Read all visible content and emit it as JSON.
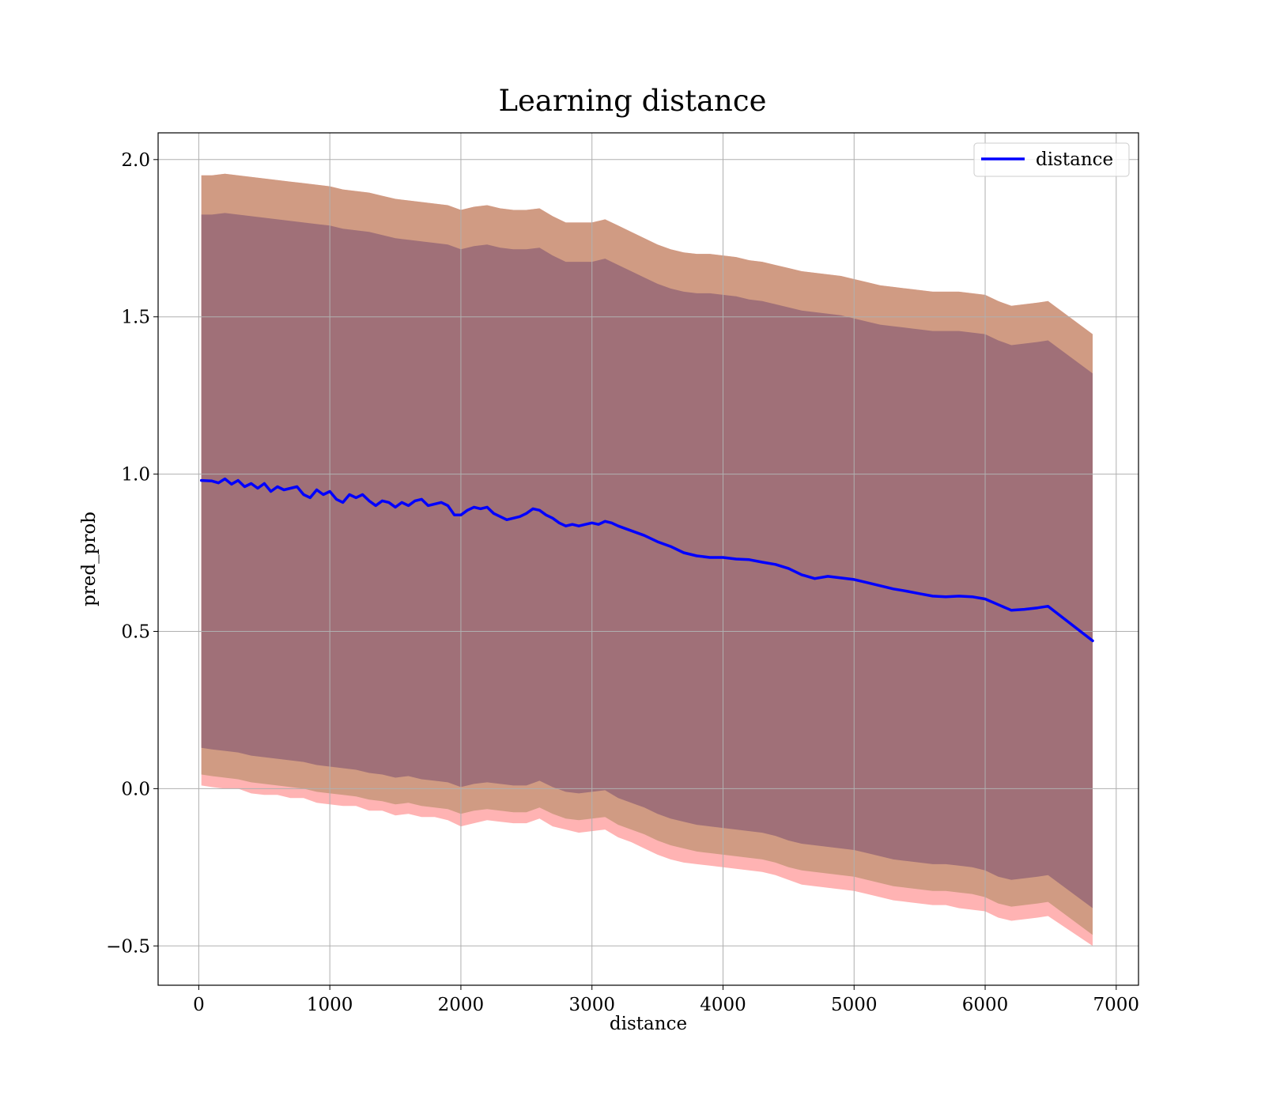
{
  "chart_data": {
    "type": "line",
    "title": "Learning distance",
    "xlabel": "distance",
    "ylabel": "pred_prob",
    "xlim": [
      -310,
      7170
    ],
    "ylim": [
      -0.625,
      2.085
    ],
    "xticks": [
      0,
      1000,
      2000,
      3000,
      4000,
      5000,
      6000,
      7000
    ],
    "yticks": [
      -0.5,
      0.0,
      0.5,
      1.0,
      1.5,
      2.0
    ],
    "xtick_labels": [
      "0",
      "1000",
      "2000",
      "3000",
      "4000",
      "5000",
      "6000",
      "7000"
    ],
    "ytick_labels": [
      "−0.5",
      "0.0",
      "0.5",
      "1.0",
      "1.5",
      "2.0"
    ],
    "grid": true,
    "legend_position": "top-right",
    "colors": {
      "line": "#0000ff",
      "band_outer": "#ff9a9a",
      "band_middle": "#c8967a",
      "band_inner": "#a07078",
      "grid": "#b0b0b0"
    },
    "series": [
      {
        "name": "distance",
        "kind": "line",
        "x": [
          20,
          100,
          150,
          200,
          250,
          300,
          350,
          400,
          450,
          500,
          550,
          600,
          650,
          700,
          750,
          800,
          850,
          900,
          950,
          1000,
          1050,
          1100,
          1150,
          1200,
          1250,
          1300,
          1350,
          1400,
          1450,
          1500,
          1550,
          1600,
          1650,
          1700,
          1750,
          1800,
          1850,
          1900,
          1950,
          2000,
          2050,
          2100,
          2150,
          2200,
          2250,
          2300,
          2350,
          2400,
          2450,
          2500,
          2550,
          2600,
          2650,
          2700,
          2750,
          2800,
          2850,
          2900,
          2950,
          3000,
          3050,
          3100,
          3150,
          3200,
          3300,
          3400,
          3500,
          3600,
          3700,
          3800,
          3900,
          4000,
          4100,
          4200,
          4300,
          4400,
          4500,
          4600,
          4700,
          4800,
          4900,
          5000,
          5100,
          5200,
          5300,
          5400,
          5500,
          5600,
          5700,
          5800,
          5900,
          6000,
          6100,
          6200,
          6300,
          6400,
          6480,
          6820
        ],
        "y": [
          0.98,
          0.978,
          0.972,
          0.985,
          0.968,
          0.98,
          0.96,
          0.97,
          0.955,
          0.97,
          0.945,
          0.96,
          0.95,
          0.955,
          0.96,
          0.935,
          0.925,
          0.95,
          0.935,
          0.945,
          0.92,
          0.91,
          0.935,
          0.925,
          0.935,
          0.915,
          0.9,
          0.915,
          0.91,
          0.895,
          0.91,
          0.9,
          0.915,
          0.92,
          0.9,
          0.905,
          0.91,
          0.9,
          0.87,
          0.87,
          0.885,
          0.895,
          0.89,
          0.895,
          0.875,
          0.865,
          0.855,
          0.86,
          0.865,
          0.875,
          0.89,
          0.885,
          0.87,
          0.86,
          0.845,
          0.835,
          0.84,
          0.835,
          0.84,
          0.845,
          0.84,
          0.85,
          0.845,
          0.835,
          0.82,
          0.805,
          0.785,
          0.77,
          0.75,
          0.74,
          0.735,
          0.735,
          0.73,
          0.728,
          0.72,
          0.713,
          0.7,
          0.68,
          0.668,
          0.675,
          0.67,
          0.665,
          0.655,
          0.645,
          0.635,
          0.628,
          0.62,
          0.612,
          0.61,
          0.612,
          0.61,
          0.603,
          0.585,
          0.567,
          0.57,
          0.575,
          0.58,
          0.47
        ]
      },
      {
        "kind": "band",
        "x": [
          20,
          100,
          200,
          300,
          400,
          500,
          600,
          700,
          800,
          900,
          1000,
          1100,
          1200,
          1300,
          1400,
          1500,
          1600,
          1700,
          1800,
          1900,
          2000,
          2100,
          2200,
          2300,
          2400,
          2500,
          2600,
          2700,
          2800,
          2900,
          3000,
          3100,
          3200,
          3300,
          3400,
          3500,
          3600,
          3700,
          3800,
          3900,
          4000,
          4100,
          4200,
          4300,
          4400,
          4500,
          4600,
          4700,
          4800,
          4900,
          5000,
          5100,
          5200,
          5300,
          5400,
          5500,
          5600,
          5700,
          5800,
          5900,
          6000,
          6100,
          6200,
          6300,
          6400,
          6480,
          6820
        ],
        "lower": [
          0.01,
          0.005,
          0.0,
          0.0,
          -0.015,
          -0.02,
          -0.02,
          -0.03,
          -0.03,
          -0.045,
          -0.05,
          -0.055,
          -0.055,
          -0.07,
          -0.07,
          -0.085,
          -0.08,
          -0.09,
          -0.09,
          -0.1,
          -0.12,
          -0.11,
          -0.1,
          -0.105,
          -0.11,
          -0.11,
          -0.095,
          -0.12,
          -0.13,
          -0.14,
          -0.135,
          -0.13,
          -0.155,
          -0.17,
          -0.19,
          -0.21,
          -0.225,
          -0.235,
          -0.24,
          -0.245,
          -0.25,
          -0.255,
          -0.26,
          -0.265,
          -0.275,
          -0.29,
          -0.305,
          -0.31,
          -0.315,
          -0.32,
          -0.325,
          -0.335,
          -0.345,
          -0.355,
          -0.36,
          -0.365,
          -0.37,
          -0.37,
          -0.38,
          -0.385,
          -0.39,
          -0.41,
          -0.42,
          -0.415,
          -0.41,
          -0.405,
          -0.5
        ],
        "upper": [
          1.95,
          1.95,
          1.955,
          1.95,
          1.945,
          1.94,
          1.935,
          1.93,
          1.925,
          1.92,
          1.915,
          1.905,
          1.9,
          1.895,
          1.885,
          1.875,
          1.87,
          1.865,
          1.86,
          1.855,
          1.84,
          1.85,
          1.855,
          1.845,
          1.84,
          1.84,
          1.845,
          1.82,
          1.8,
          1.8,
          1.8,
          1.81,
          1.79,
          1.77,
          1.75,
          1.73,
          1.715,
          1.705,
          1.7,
          1.7,
          1.695,
          1.69,
          1.68,
          1.675,
          1.665,
          1.655,
          1.645,
          1.64,
          1.635,
          1.63,
          1.62,
          1.61,
          1.6,
          1.595,
          1.59,
          1.585,
          1.58,
          1.58,
          1.58,
          1.575,
          1.57,
          1.55,
          1.535,
          1.54,
          1.545,
          1.55,
          1.445
        ]
      },
      {
        "kind": "band",
        "x": [
          20,
          100,
          200,
          300,
          400,
          500,
          600,
          700,
          800,
          900,
          1000,
          1100,
          1200,
          1300,
          1400,
          1500,
          1600,
          1700,
          1800,
          1900,
          2000,
          2100,
          2200,
          2300,
          2400,
          2500,
          2600,
          2700,
          2800,
          2900,
          3000,
          3100,
          3200,
          3300,
          3400,
          3500,
          3600,
          3700,
          3800,
          3900,
          4000,
          4100,
          4200,
          4300,
          4400,
          4500,
          4600,
          4700,
          4800,
          4900,
          5000,
          5100,
          5200,
          5300,
          5400,
          5500,
          5600,
          5700,
          5800,
          5900,
          6000,
          6100,
          6200,
          6300,
          6400,
          6480,
          6820
        ],
        "lower": [
          0.045,
          0.04,
          0.035,
          0.03,
          0.02,
          0.015,
          0.01,
          0.005,
          0.0,
          -0.01,
          -0.015,
          -0.02,
          -0.025,
          -0.035,
          -0.04,
          -0.05,
          -0.045,
          -0.055,
          -0.06,
          -0.065,
          -0.08,
          -0.07,
          -0.065,
          -0.07,
          -0.075,
          -0.075,
          -0.06,
          -0.08,
          -0.095,
          -0.1,
          -0.095,
          -0.09,
          -0.115,
          -0.13,
          -0.145,
          -0.165,
          -0.18,
          -0.19,
          -0.2,
          -0.205,
          -0.21,
          -0.215,
          -0.22,
          -0.225,
          -0.235,
          -0.25,
          -0.26,
          -0.265,
          -0.27,
          -0.275,
          -0.28,
          -0.29,
          -0.3,
          -0.31,
          -0.315,
          -0.32,
          -0.325,
          -0.325,
          -0.33,
          -0.335,
          -0.345,
          -0.365,
          -0.375,
          -0.37,
          -0.365,
          -0.36,
          -0.465
        ]
      },
      {
        "kind": "band",
        "x": [
          20,
          100,
          200,
          300,
          400,
          500,
          600,
          700,
          800,
          900,
          1000,
          1100,
          1200,
          1300,
          1400,
          1500,
          1600,
          1700,
          1800,
          1900,
          2000,
          2100,
          2200,
          2300,
          2400,
          2500,
          2600,
          2700,
          2800,
          2900,
          3000,
          3100,
          3200,
          3300,
          3400,
          3500,
          3600,
          3700,
          3800,
          3900,
          4000,
          4100,
          4200,
          4300,
          4400,
          4500,
          4600,
          4700,
          4800,
          4900,
          5000,
          5100,
          5200,
          5300,
          5400,
          5500,
          5600,
          5700,
          5800,
          5900,
          6000,
          6100,
          6200,
          6300,
          6400,
          6480,
          6820
        ],
        "lower": [
          0.13,
          0.125,
          0.12,
          0.115,
          0.105,
          0.1,
          0.095,
          0.09,
          0.085,
          0.075,
          0.07,
          0.065,
          0.06,
          0.05,
          0.045,
          0.035,
          0.04,
          0.03,
          0.025,
          0.02,
          0.005,
          0.015,
          0.02,
          0.015,
          0.01,
          0.01,
          0.025,
          0.005,
          -0.01,
          -0.015,
          -0.01,
          -0.005,
          -0.03,
          -0.045,
          -0.06,
          -0.08,
          -0.095,
          -0.105,
          -0.115,
          -0.12,
          -0.125,
          -0.13,
          -0.135,
          -0.14,
          -0.15,
          -0.165,
          -0.175,
          -0.18,
          -0.185,
          -0.19,
          -0.195,
          -0.205,
          -0.215,
          -0.225,
          -0.23,
          -0.235,
          -0.24,
          -0.24,
          -0.245,
          -0.25,
          -0.26,
          -0.28,
          -0.29,
          -0.285,
          -0.28,
          -0.275,
          -0.38
        ],
        "upper": [
          1.825,
          1.825,
          1.83,
          1.825,
          1.82,
          1.815,
          1.81,
          1.805,
          1.8,
          1.795,
          1.79,
          1.78,
          1.775,
          1.77,
          1.76,
          1.75,
          1.745,
          1.74,
          1.735,
          1.73,
          1.715,
          1.725,
          1.73,
          1.72,
          1.715,
          1.715,
          1.72,
          1.695,
          1.675,
          1.675,
          1.675,
          1.685,
          1.665,
          1.645,
          1.625,
          1.605,
          1.59,
          1.58,
          1.575,
          1.575,
          1.57,
          1.565,
          1.555,
          1.55,
          1.54,
          1.53,
          1.52,
          1.515,
          1.51,
          1.505,
          1.495,
          1.485,
          1.475,
          1.47,
          1.465,
          1.46,
          1.455,
          1.455,
          1.455,
          1.45,
          1.445,
          1.425,
          1.41,
          1.415,
          1.42,
          1.425,
          1.32
        ]
      }
    ]
  }
}
